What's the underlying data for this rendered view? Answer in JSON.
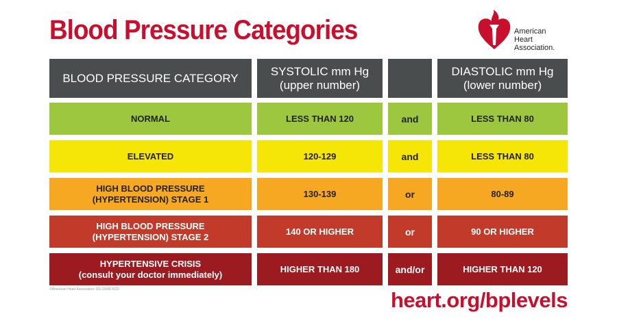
{
  "title": "Blood Pressure Categories",
  "logo": {
    "text_line1": "American",
    "text_line2": "Heart",
    "text_line3": "Association.",
    "color": "#c8102e"
  },
  "table": {
    "headers": {
      "category": "BLOOD PRESSURE CATEGORY",
      "systolic": "SYSTOLIC mm Hg",
      "systolic_sub": "(upper number)",
      "conjunction": "",
      "diastolic": "DIASTOLIC mm Hg",
      "diastolic_sub": "(lower number)"
    },
    "rows": [
      {
        "category": "NORMAL",
        "category_sub": "",
        "systolic": "LESS THAN 120",
        "conjunction": "and",
        "diastolic": "LESS THAN 80",
        "color": "#9dc73f"
      },
      {
        "category": "ELEVATED",
        "category_sub": "",
        "systolic": "120-129",
        "conjunction": "and",
        "diastolic": "LESS THAN 80",
        "color": "#f6e608"
      },
      {
        "category": "HIGH BLOOD PRESSURE",
        "category_sub": "(HYPERTENSION) STAGE 1",
        "systolic": "130-139",
        "conjunction": "or",
        "diastolic": "80-89",
        "color": "#f7a823"
      },
      {
        "category": "HIGH BLOOD PRESSURE",
        "category_sub": "(HYPERTENSION) STAGE 2",
        "systolic": "140 OR HIGHER",
        "conjunction": "or",
        "diastolic": "90 OR HIGHER",
        "color": "#c23b2a"
      },
      {
        "category": "HYPERTENSIVE CRISIS",
        "category_sub": "(consult your doctor immediately)",
        "systolic": "HIGHER THAN 180",
        "conjunction": "and/or",
        "diastolic": "HIGHER THAN 120",
        "color": "#9c1b20"
      }
    ]
  },
  "copyright": "©American Heart Association. DS-15680 6/20",
  "url": "heart.org/bplevels"
}
